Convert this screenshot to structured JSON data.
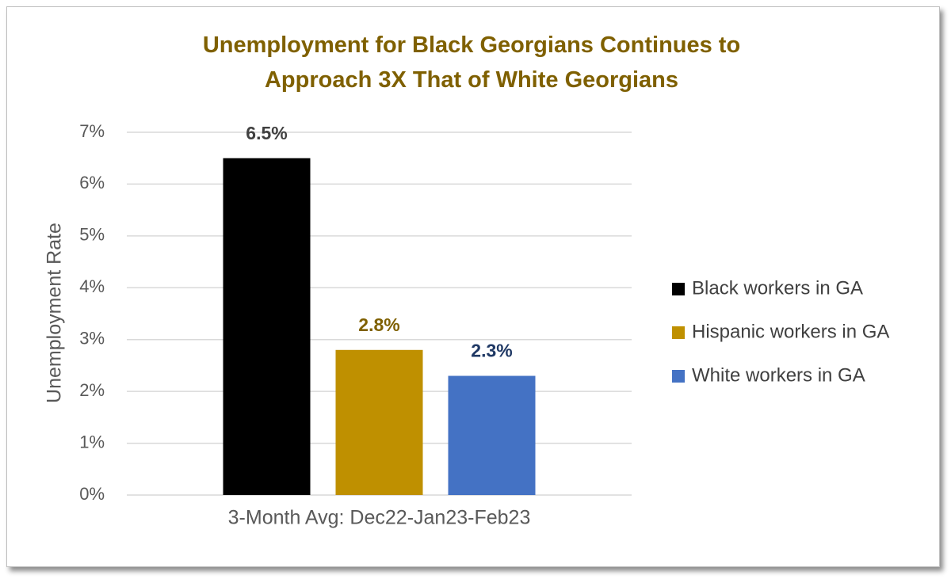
{
  "chart_data": {
    "type": "bar",
    "title": "Unemployment for Black Georgians Continues to Approach 3X That of White Georgians",
    "title_color": "#7f6000",
    "y_label": "Unemployment Rate",
    "categories": [
      "3-Month Avg: Dec22-Jan23-Feb23"
    ],
    "series": [
      {
        "name": "Black workers in GA",
        "color": "#000000",
        "label_color": "#404040",
        "values": [
          6.5
        ],
        "value_labels": [
          "6.5%"
        ]
      },
      {
        "name": "Hispanic workers in GA",
        "color": "#bf9000",
        "label_color": "#7f6000",
        "values": [
          2.8
        ],
        "value_labels": [
          "2.8%"
        ]
      },
      {
        "name": "White workers in GA",
        "color": "#4472c4",
        "label_color": "#1f3864",
        "values": [
          2.3
        ],
        "value_labels": [
          "2.3%"
        ]
      }
    ],
    "ylim": [
      0,
      7
    ],
    "yticks": [
      {
        "value": 0,
        "label": "0%"
      },
      {
        "value": 1,
        "label": "1%"
      },
      {
        "value": 2,
        "label": "2%"
      },
      {
        "value": 3,
        "label": "3%"
      },
      {
        "value": 4,
        "label": "4%"
      },
      {
        "value": 5,
        "label": "5%"
      },
      {
        "value": 6,
        "label": "6%"
      },
      {
        "value": 7,
        "label": "7%"
      }
    ],
    "grid": true,
    "legend": "right"
  }
}
